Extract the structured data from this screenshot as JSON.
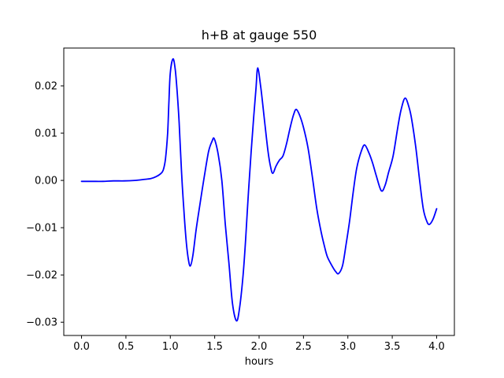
{
  "figure": {
    "background": "#ffffff"
  },
  "chart_data": {
    "type": "line",
    "title": "h+B at gauge 550",
    "xlabel": "hours",
    "ylabel": "",
    "xlim": [
      -0.2,
      4.2
    ],
    "ylim": [
      -0.0328,
      0.028
    ],
    "xticks": [
      0.0,
      0.5,
      1.0,
      1.5,
      2.0,
      2.5,
      3.0,
      3.5,
      4.0
    ],
    "xtick_labels": [
      "0.0",
      "0.5",
      "1.0",
      "1.5",
      "2.0",
      "2.5",
      "3.0",
      "3.5",
      "4.0"
    ],
    "yticks": [
      0.02,
      0.01,
      0.0,
      -0.01,
      -0.02,
      -0.03
    ],
    "ytick_labels": [
      "0.02",
      "0.01",
      "0.00",
      "−0.01",
      "−0.02",
      "−0.03"
    ],
    "grid": false,
    "legend": false,
    "line_color": "#0000ff",
    "line_width": 1.8,
    "axis_color": "#000000",
    "series": [
      {
        "name": "h+B at gauge 550",
        "points": [
          [
            0.0,
            -0.0002
          ],
          [
            0.12,
            -0.0002
          ],
          [
            0.24,
            -0.0002
          ],
          [
            0.36,
            -0.0001
          ],
          [
            0.48,
            -0.0001
          ],
          [
            0.6,
            0.0
          ],
          [
            0.7,
            0.0002
          ],
          [
            0.78,
            0.0004
          ],
          [
            0.84,
            0.0008
          ],
          [
            0.89,
            0.0014
          ],
          [
            0.92,
            0.0022
          ],
          [
            0.945,
            0.0045
          ],
          [
            0.97,
            0.01
          ],
          [
            0.985,
            0.017
          ],
          [
            1.0,
            0.0228
          ],
          [
            1.03,
            0.0257
          ],
          [
            1.055,
            0.0235
          ],
          [
            1.077,
            0.0187
          ],
          [
            1.1,
            0.0122
          ],
          [
            1.125,
            0.0022
          ],
          [
            1.15,
            -0.0055
          ],
          [
            1.175,
            -0.012
          ],
          [
            1.2,
            -0.0163
          ],
          [
            1.225,
            -0.0181
          ],
          [
            1.255,
            -0.0158
          ],
          [
            1.29,
            -0.0105
          ],
          [
            1.33,
            -0.0055
          ],
          [
            1.38,
            0.0005
          ],
          [
            1.43,
            0.006
          ],
          [
            1.47,
            0.0083
          ],
          [
            1.495,
            0.0088
          ],
          [
            1.54,
            0.0055
          ],
          [
            1.58,
            0.0
          ],
          [
            1.62,
            -0.0095
          ],
          [
            1.66,
            -0.0175
          ],
          [
            1.7,
            -0.026
          ],
          [
            1.745,
            -0.0297
          ],
          [
            1.78,
            -0.027
          ],
          [
            1.82,
            -0.02
          ],
          [
            1.85,
            -0.012
          ],
          [
            1.88,
            -0.0025
          ],
          [
            1.91,
            0.006
          ],
          [
            1.94,
            0.0135
          ],
          [
            1.965,
            0.0195
          ],
          [
            1.985,
            0.0238
          ],
          [
            2.02,
            0.0195
          ],
          [
            2.06,
            0.0128
          ],
          [
            2.1,
            0.0062
          ],
          [
            2.13,
            0.0028
          ],
          [
            2.155,
            0.0015
          ],
          [
            2.19,
            0.003
          ],
          [
            2.23,
            0.0043
          ],
          [
            2.27,
            0.0052
          ],
          [
            2.31,
            0.0078
          ],
          [
            2.35,
            0.0112
          ],
          [
            2.39,
            0.014
          ],
          [
            2.42,
            0.015
          ],
          [
            2.46,
            0.0136
          ],
          [
            2.5,
            0.0112
          ],
          [
            2.55,
            0.007
          ],
          [
            2.6,
            0.0008
          ],
          [
            2.65,
            -0.006
          ],
          [
            2.7,
            -0.011
          ],
          [
            2.74,
            -0.0142
          ],
          [
            2.77,
            -0.0162
          ],
          [
            2.82,
            -0.018
          ],
          [
            2.86,
            -0.0192
          ],
          [
            2.895,
            -0.0197
          ],
          [
            2.94,
            -0.018
          ],
          [
            2.98,
            -0.0135
          ],
          [
            3.02,
            -0.0085
          ],
          [
            3.06,
            -0.0025
          ],
          [
            3.1,
            0.0026
          ],
          [
            3.15,
            0.0061
          ],
          [
            3.19,
            0.0075
          ],
          [
            3.24,
            0.0057
          ],
          [
            3.28,
            0.0036
          ],
          [
            3.32,
            0.001
          ],
          [
            3.377,
            -0.0022
          ],
          [
            3.42,
            -0.001
          ],
          [
            3.46,
            0.0018
          ],
          [
            3.51,
            0.0052
          ],
          [
            3.56,
            0.011
          ],
          [
            3.6,
            0.015
          ],
          [
            3.645,
            0.0174
          ],
          [
            3.69,
            0.0154
          ],
          [
            3.72,
            0.0128
          ],
          [
            3.765,
            0.007
          ],
          [
            3.81,
            -0.0002
          ],
          [
            3.85,
            -0.006
          ],
          [
            3.89,
            -0.0087
          ],
          [
            3.92,
            -0.0093
          ],
          [
            3.96,
            -0.0082
          ],
          [
            4.0,
            -0.006
          ]
        ]
      }
    ]
  }
}
